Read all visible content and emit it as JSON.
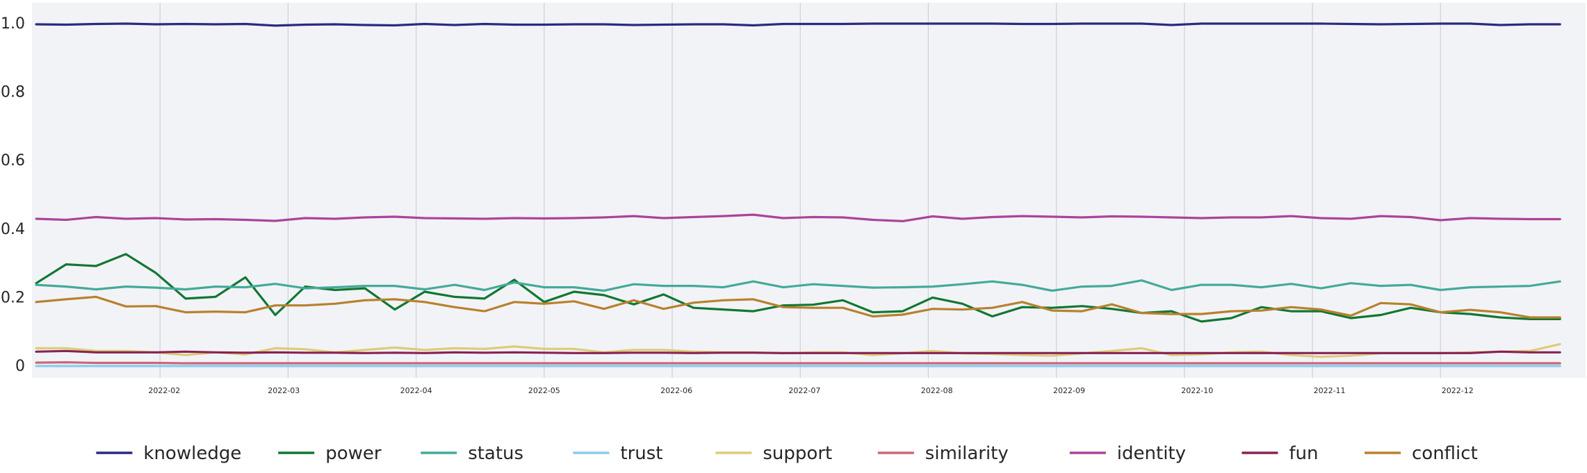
{
  "chart_data": {
    "type": "line",
    "title": "",
    "xlabel": "",
    "ylabel": "",
    "ylim": [
      -0.02,
      1.05
    ],
    "xlim": [
      "2022-01-01",
      "2022-12-31"
    ],
    "grid": {
      "vertical": true,
      "horizontal": false
    },
    "legend_position": "bottom",
    "plot_background": "#f2f3f6",
    "yticks": [
      {
        "value": 0,
        "label": "0"
      },
      {
        "value": 0.2,
        "label": "0.2"
      },
      {
        "value": 0.4,
        "label": "0.4"
      },
      {
        "value": 0.6,
        "label": "0.6"
      },
      {
        "value": 0.8,
        "label": "0.8"
      },
      {
        "value": 1.0,
        "label": "1.0"
      }
    ],
    "xticks": [
      {
        "date": "2022-02-01",
        "label": "2022-02"
      },
      {
        "date": "2022-03-01",
        "label": "2022-03"
      },
      {
        "date": "2022-04-01",
        "label": "2022-04"
      },
      {
        "date": "2022-05-01",
        "label": "2022-05"
      },
      {
        "date": "2022-06-01",
        "label": "2022-06"
      },
      {
        "date": "2022-07-01",
        "label": "2022-07"
      },
      {
        "date": "2022-08-01",
        "label": "2022-08"
      },
      {
        "date": "2022-09-01",
        "label": "2022-09"
      },
      {
        "date": "2022-10-01",
        "label": "2022-10"
      },
      {
        "date": "2022-11-01",
        "label": "2022-11"
      },
      {
        "date": "2022-12-01",
        "label": "2022-12"
      }
    ],
    "gridline_dates": [
      "2022-01-31",
      "2022-03-02",
      "2022-04-01",
      "2022-05-01",
      "2022-05-31",
      "2022-06-30",
      "2022-07-30",
      "2022-08-29",
      "2022-09-28",
      "2022-10-28",
      "2022-11-27"
    ],
    "x": [
      "2022-01-02",
      "2022-01-09",
      "2022-01-16",
      "2022-01-23",
      "2022-01-30",
      "2022-02-06",
      "2022-02-13",
      "2022-02-20",
      "2022-02-27",
      "2022-03-06",
      "2022-03-13",
      "2022-03-20",
      "2022-03-27",
      "2022-04-03",
      "2022-04-10",
      "2022-04-17",
      "2022-04-24",
      "2022-05-01",
      "2022-05-08",
      "2022-05-15",
      "2022-05-22",
      "2022-05-29",
      "2022-06-05",
      "2022-06-12",
      "2022-06-19",
      "2022-06-26",
      "2022-07-03",
      "2022-07-10",
      "2022-07-17",
      "2022-07-24",
      "2022-07-31",
      "2022-08-07",
      "2022-08-14",
      "2022-08-21",
      "2022-08-28",
      "2022-09-04",
      "2022-09-11",
      "2022-09-18",
      "2022-09-25",
      "2022-10-02",
      "2022-10-09",
      "2022-10-16",
      "2022-10-23",
      "2022-10-30",
      "2022-11-06",
      "2022-11-13",
      "2022-11-20",
      "2022-11-27",
      "2022-12-04",
      "2022-12-11",
      "2022-12-18",
      "2022-12-25"
    ],
    "series": [
      {
        "name": "knowledge",
        "color": "#2b2a7e",
        "values": [
          0.996,
          0.995,
          0.997,
          0.998,
          0.996,
          0.997,
          0.996,
          0.997,
          0.992,
          0.995,
          0.996,
          0.994,
          0.993,
          0.997,
          0.994,
          0.997,
          0.995,
          0.995,
          0.996,
          0.996,
          0.994,
          0.995,
          0.996,
          0.996,
          0.993,
          0.997,
          0.997,
          0.997,
          0.998,
          0.998,
          0.998,
          0.998,
          0.998,
          0.997,
          0.997,
          0.998,
          0.998,
          0.998,
          0.994,
          0.998,
          0.998,
          0.998,
          0.998,
          0.998,
          0.997,
          0.996,
          0.997,
          0.998,
          0.998,
          0.994,
          0.996,
          0.996
        ]
      },
      {
        "name": "power",
        "color": "#117733",
        "values": [
          0.24,
          0.295,
          0.29,
          0.325,
          0.27,
          0.195,
          0.2,
          0.257,
          0.147,
          0.23,
          0.22,
          0.225,
          0.163,
          0.215,
          0.2,
          0.195,
          0.25,
          0.185,
          0.215,
          0.205,
          0.178,
          0.207,
          0.168,
          0.163,
          0.158,
          0.175,
          0.177,
          0.19,
          0.155,
          0.158,
          0.198,
          0.18,
          0.143,
          0.17,
          0.168,
          0.173,
          0.165,
          0.153,
          0.158,
          0.128,
          0.138,
          0.17,
          0.158,
          0.158,
          0.138,
          0.147,
          0.168,
          0.155,
          0.15,
          0.14,
          0.135,
          0.135
        ]
      },
      {
        "name": "status",
        "color": "#44aa99",
        "values": [
          0.235,
          0.23,
          0.222,
          0.23,
          0.227,
          0.222,
          0.23,
          0.228,
          0.238,
          0.225,
          0.228,
          0.232,
          0.232,
          0.222,
          0.235,
          0.22,
          0.242,
          0.228,
          0.228,
          0.218,
          0.237,
          0.232,
          0.232,
          0.228,
          0.245,
          0.228,
          0.237,
          0.232,
          0.227,
          0.228,
          0.23,
          0.237,
          0.245,
          0.235,
          0.218,
          0.23,
          0.232,
          0.248,
          0.22,
          0.235,
          0.235,
          0.228,
          0.238,
          0.225,
          0.24,
          0.232,
          0.235,
          0.22,
          0.228,
          0.23,
          0.232,
          0.245
        ]
      },
      {
        "name": "trust",
        "color": "#88ccee",
        "values": [
          -0.002,
          -0.002,
          -0.002,
          -0.002,
          -0.002,
          -0.002,
          -0.002,
          -0.002,
          -0.002,
          -0.002,
          -0.002,
          -0.002,
          -0.002,
          -0.002,
          -0.002,
          -0.002,
          -0.002,
          -0.002,
          -0.002,
          -0.002,
          -0.002,
          -0.002,
          -0.002,
          -0.002,
          -0.002,
          -0.002,
          -0.002,
          -0.002,
          -0.002,
          -0.002,
          -0.002,
          -0.002,
          -0.002,
          -0.002,
          -0.002,
          -0.002,
          -0.002,
          -0.002,
          -0.002,
          -0.002,
          -0.002,
          -0.002,
          -0.002,
          -0.002,
          -0.002,
          -0.002,
          -0.002,
          -0.002,
          -0.002,
          -0.002,
          -0.002,
          -0.002
        ]
      },
      {
        "name": "support",
        "color": "#ddcc77",
        "values": [
          0.05,
          0.05,
          0.042,
          0.042,
          0.038,
          0.03,
          0.038,
          0.032,
          0.05,
          0.047,
          0.038,
          0.045,
          0.052,
          0.045,
          0.05,
          0.048,
          0.055,
          0.048,
          0.048,
          0.038,
          0.045,
          0.045,
          0.04,
          0.038,
          0.038,
          0.035,
          0.038,
          0.038,
          0.03,
          0.035,
          0.042,
          0.035,
          0.033,
          0.03,
          0.028,
          0.035,
          0.042,
          0.05,
          0.03,
          0.032,
          0.038,
          0.04,
          0.03,
          0.025,
          0.028,
          0.035,
          0.035,
          0.035,
          0.038,
          0.04,
          0.042,
          0.062
        ]
      },
      {
        "name": "similarity",
        "color": "#cc6677",
        "values": [
          0.008,
          0.009,
          0.007,
          0.007,
          0.007,
          0.006,
          0.006,
          0.006,
          0.006,
          0.006,
          0.006,
          0.006,
          0.006,
          0.006,
          0.006,
          0.006,
          0.006,
          0.006,
          0.006,
          0.006,
          0.006,
          0.006,
          0.006,
          0.006,
          0.006,
          0.006,
          0.006,
          0.006,
          0.006,
          0.006,
          0.006,
          0.006,
          0.006,
          0.006,
          0.006,
          0.006,
          0.006,
          0.006,
          0.006,
          0.006,
          0.006,
          0.006,
          0.006,
          0.006,
          0.006,
          0.006,
          0.006,
          0.006,
          0.006,
          0.006,
          0.006,
          0.006
        ]
      },
      {
        "name": "identity",
        "color": "#aa4499",
        "values": [
          0.428,
          0.425,
          0.433,
          0.428,
          0.43,
          0.426,
          0.427,
          0.425,
          0.422,
          0.43,
          0.428,
          0.432,
          0.434,
          0.43,
          0.429,
          0.428,
          0.43,
          0.429,
          0.43,
          0.432,
          0.436,
          0.43,
          0.433,
          0.436,
          0.44,
          0.43,
          0.433,
          0.432,
          0.425,
          0.421,
          0.435,
          0.428,
          0.433,
          0.436,
          0.434,
          0.432,
          0.435,
          0.434,
          0.432,
          0.43,
          0.432,
          0.432,
          0.436,
          0.43,
          0.428,
          0.436,
          0.433,
          0.424,
          0.43,
          0.428,
          0.427,
          0.427
        ]
      },
      {
        "name": "fun",
        "color": "#882255",
        "values": [
          0.04,
          0.042,
          0.038,
          0.038,
          0.038,
          0.04,
          0.038,
          0.037,
          0.038,
          0.037,
          0.037,
          0.036,
          0.037,
          0.036,
          0.038,
          0.037,
          0.038,
          0.037,
          0.036,
          0.036,
          0.037,
          0.037,
          0.036,
          0.037,
          0.037,
          0.036,
          0.036,
          0.036,
          0.036,
          0.036,
          0.036,
          0.036,
          0.036,
          0.036,
          0.036,
          0.036,
          0.036,
          0.036,
          0.036,
          0.036,
          0.036,
          0.036,
          0.036,
          0.036,
          0.036,
          0.036,
          0.036,
          0.036,
          0.036,
          0.04,
          0.038,
          0.038
        ]
      },
      {
        "name": "conflict",
        "color": "#b8812e",
        "values": [
          0.185,
          0.193,
          0.2,
          0.172,
          0.173,
          0.155,
          0.157,
          0.155,
          0.175,
          0.175,
          0.18,
          0.19,
          0.193,
          0.185,
          0.17,
          0.158,
          0.185,
          0.18,
          0.187,
          0.165,
          0.19,
          0.165,
          0.183,
          0.19,
          0.193,
          0.17,
          0.168,
          0.168,
          0.143,
          0.148,
          0.165,
          0.163,
          0.168,
          0.185,
          0.16,
          0.158,
          0.178,
          0.153,
          0.15,
          0.15,
          0.158,
          0.16,
          0.17,
          0.163,
          0.145,
          0.182,
          0.178,
          0.155,
          0.162,
          0.155,
          0.14,
          0.14
        ]
      }
    ]
  }
}
